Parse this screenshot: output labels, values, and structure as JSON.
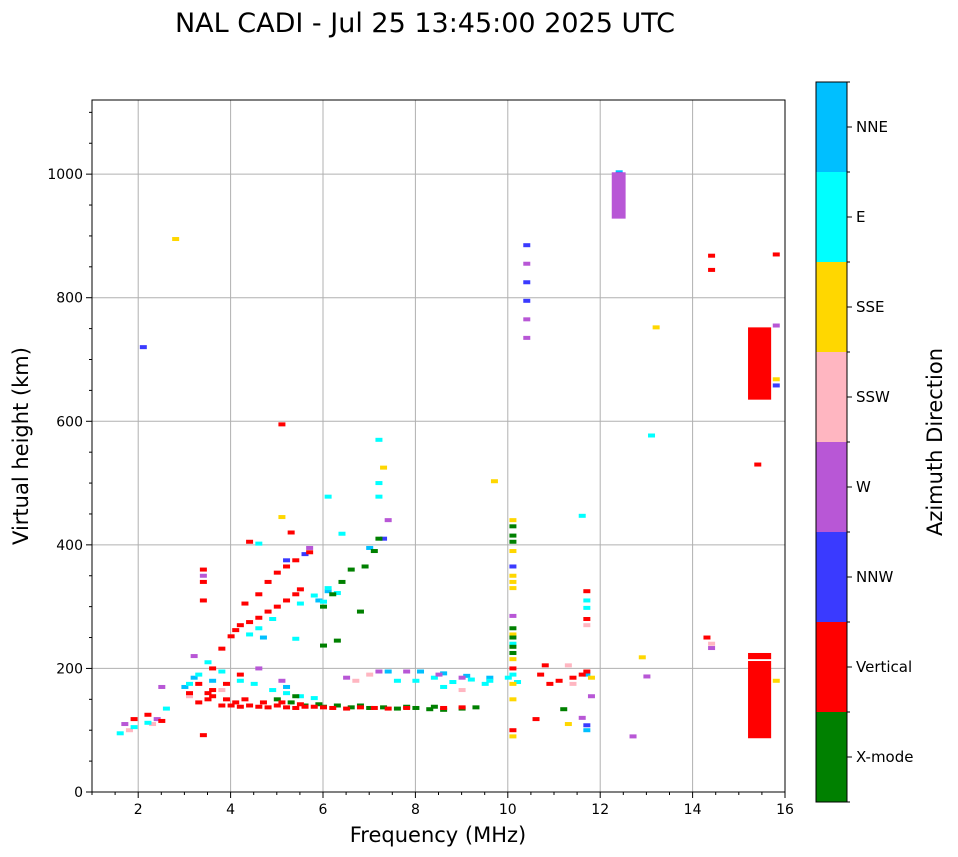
{
  "chart_data": {
    "type": "scatter",
    "title": "NAL CADI - Jul 25 13:45:00 2025 UTC",
    "xlabel": "Frequency (MHz)",
    "ylabel": "Virtual height (km)",
    "xlim": [
      1,
      16
    ],
    "ylim": [
      0,
      1120
    ],
    "xticks": [
      2,
      4,
      6,
      8,
      10,
      12,
      14,
      16
    ],
    "yticks": [
      0,
      200,
      400,
      600,
      800,
      1000
    ],
    "grid": true,
    "colorbar": {
      "label": "Azimuth Direction",
      "categories": [
        "X-mode",
        "Vertical",
        "NNW",
        "W",
        "SSW",
        "SSE",
        "E",
        "NNE"
      ],
      "colors": [
        "#008000",
        "#ff0000",
        "#3a3aff",
        "#b857d6",
        "#ffb6c1",
        "#ffd700",
        "#00ffff",
        "#00bfff"
      ]
    },
    "series": [
      {
        "name": "X-mode",
        "points": [
          [
            5.0,
            150
          ],
          [
            5.3,
            145
          ],
          [
            5.6,
            140
          ],
          [
            6.0,
            138
          ],
          [
            6.3,
            140
          ],
          [
            6.6,
            137
          ],
          [
            7.0,
            136
          ],
          [
            7.3,
            137
          ],
          [
            7.6,
            135
          ],
          [
            8.0,
            136
          ],
          [
            8.3,
            134
          ],
          [
            8.6,
            133
          ],
          [
            9.0,
            135
          ],
          [
            9.3,
            137
          ],
          [
            5.4,
            155
          ],
          [
            5.9,
            142
          ],
          [
            6.8,
            140
          ],
          [
            7.8,
            138
          ],
          [
            8.4,
            138
          ],
          [
            6.4,
            340
          ],
          [
            6.6,
            360
          ],
          [
            6.9,
            365
          ],
          [
            7.1,
            390
          ],
          [
            6.2,
            320
          ],
          [
            6.0,
            300
          ],
          [
            7.2,
            410
          ],
          [
            6.3,
            245
          ],
          [
            6.0,
            237
          ],
          [
            6.8,
            292
          ],
          [
            10.1,
            430
          ],
          [
            10.1,
            415
          ],
          [
            10.1,
            405
          ],
          [
            10.1,
            265
          ],
          [
            10.1,
            250
          ],
          [
            10.1,
            235
          ],
          [
            10.1,
            225
          ],
          [
            11.2,
            134
          ]
        ]
      },
      {
        "name": "Vertical",
        "points": [
          [
            1.9,
            118
          ],
          [
            2.2,
            125
          ],
          [
            2.5,
            115
          ],
          [
            3.1,
            160
          ],
          [
            3.3,
            175
          ],
          [
            3.5,
            150
          ],
          [
            3.6,
            165
          ],
          [
            3.8,
            140
          ],
          [
            4.0,
            140
          ],
          [
            4.2,
            138
          ],
          [
            4.4,
            140
          ],
          [
            4.6,
            138
          ],
          [
            4.8,
            137
          ],
          [
            5.0,
            140
          ],
          [
            5.2,
            137
          ],
          [
            5.4,
            136
          ],
          [
            5.6,
            138
          ],
          [
            5.8,
            138
          ],
          [
            6.0,
            137
          ],
          [
            6.2,
            136
          ],
          [
            6.5,
            135
          ],
          [
            6.8,
            137
          ],
          [
            7.1,
            136
          ],
          [
            7.4,
            135
          ],
          [
            7.8,
            136
          ],
          [
            8.6,
            136
          ],
          [
            9.0,
            137
          ],
          [
            3.3,
            145
          ],
          [
            3.6,
            155
          ],
          [
            3.9,
            150
          ],
          [
            4.1,
            145
          ],
          [
            4.3,
            150
          ],
          [
            4.7,
            145
          ],
          [
            5.1,
            145
          ],
          [
            5.5,
            142
          ],
          [
            3.5,
            160
          ],
          [
            3.9,
            175
          ],
          [
            4.2,
            190
          ],
          [
            3.6,
            200
          ],
          [
            3.8,
            232
          ],
          [
            4.0,
            252
          ],
          [
            4.1,
            262
          ],
          [
            4.2,
            270
          ],
          [
            4.4,
            275
          ],
          [
            4.6,
            282
          ],
          [
            4.8,
            292
          ],
          [
            5.0,
            300
          ],
          [
            5.2,
            310
          ],
          [
            5.4,
            320
          ],
          [
            5.5,
            328
          ],
          [
            4.3,
            305
          ],
          [
            4.6,
            320
          ],
          [
            4.8,
            340
          ],
          [
            5.0,
            355
          ],
          [
            5.2,
            365
          ],
          [
            5.4,
            375
          ],
          [
            5.7,
            388
          ],
          [
            3.4,
            310
          ],
          [
            3.4,
            340
          ],
          [
            3.4,
            360
          ],
          [
            4.4,
            405
          ],
          [
            5.1,
            595
          ],
          [
            5.3,
            420
          ],
          [
            3.4,
            92
          ],
          [
            10.7,
            190
          ],
          [
            10.9,
            175
          ],
          [
            11.1,
            180
          ],
          [
            11.4,
            185
          ],
          [
            11.6,
            190
          ],
          [
            10.8,
            205
          ],
          [
            11.7,
            325
          ],
          [
            11.7,
            280
          ],
          [
            11.7,
            195
          ],
          [
            10.1,
            100
          ],
          [
            10.1,
            200
          ],
          [
            10.6,
            118
          ],
          [
            14.3,
            250
          ],
          [
            14.4,
            868
          ],
          [
            14.4,
            845
          ],
          [
            15.8,
            870
          ],
          [
            15.4,
            530
          ]
        ]
      },
      {
        "name": "NNW",
        "points": [
          [
            2.1,
            720
          ],
          [
            5.2,
            375
          ],
          [
            10.4,
            885
          ],
          [
            10.4,
            825
          ],
          [
            10.4,
            795
          ],
          [
            10.1,
            365
          ],
          [
            11.7,
            108
          ],
          [
            12.4,
            1000
          ],
          [
            12.4,
            975
          ],
          [
            12.4,
            950
          ],
          [
            15.4,
            735
          ],
          [
            15.8,
            658
          ],
          [
            7.3,
            410
          ],
          [
            5.6,
            385
          ]
        ]
      },
      {
        "name": "W",
        "points": [
          [
            1.7,
            110
          ],
          [
            2.4,
            118
          ],
          [
            2.5,
            170
          ],
          [
            3.4,
            350
          ],
          [
            3.2,
            220
          ],
          [
            4.6,
            200
          ],
          [
            5.1,
            180
          ],
          [
            6.5,
            185
          ],
          [
            7.2,
            195
          ],
          [
            7.8,
            195
          ],
          [
            8.5,
            190
          ],
          [
            9.0,
            185
          ],
          [
            10.4,
            855
          ],
          [
            10.4,
            765
          ],
          [
            10.4,
            735
          ],
          [
            10.1,
            285
          ],
          [
            11.6,
            120
          ],
          [
            11.8,
            155
          ],
          [
            12.4,
            990
          ],
          [
            12.4,
            965
          ],
          [
            12.4,
            940
          ],
          [
            12.7,
            90
          ],
          [
            13.0,
            187
          ],
          [
            14.4,
            233
          ],
          [
            15.8,
            755
          ],
          [
            7.4,
            440
          ],
          [
            5.7,
            395
          ]
        ]
      },
      {
        "name": "SSW",
        "points": [
          [
            1.8,
            100
          ],
          [
            2.3,
            110
          ],
          [
            3.1,
            155
          ],
          [
            3.8,
            165
          ],
          [
            6.7,
            180
          ],
          [
            7.0,
            190
          ],
          [
            9.0,
            165
          ],
          [
            11.4,
            175
          ],
          [
            11.3,
            205
          ],
          [
            11.7,
            270
          ],
          [
            14.4,
            240
          ]
        ]
      },
      {
        "name": "SSE",
        "points": [
          [
            2.8,
            895
          ],
          [
            7.3,
            525
          ],
          [
            9.7,
            503
          ],
          [
            10.1,
            440
          ],
          [
            10.1,
            390
          ],
          [
            10.1,
            350
          ],
          [
            10.1,
            340
          ],
          [
            10.1,
            330
          ],
          [
            10.1,
            255
          ],
          [
            10.1,
            215
          ],
          [
            10.1,
            175
          ],
          [
            10.1,
            150
          ],
          [
            10.1,
            90
          ],
          [
            11.3,
            110
          ],
          [
            13.2,
            752
          ],
          [
            12.9,
            218
          ],
          [
            15.8,
            668
          ],
          [
            15.8,
            180
          ],
          [
            5.1,
            445
          ],
          [
            11.8,
            185
          ]
        ]
      },
      {
        "name": "E",
        "points": [
          [
            1.6,
            95
          ],
          [
            1.9,
            105
          ],
          [
            2.2,
            112
          ],
          [
            2.6,
            135
          ],
          [
            3.1,
            175
          ],
          [
            3.3,
            190
          ],
          [
            3.5,
            210
          ],
          [
            3.8,
            195
          ],
          [
            4.2,
            180
          ],
          [
            4.5,
            175
          ],
          [
            4.9,
            165
          ],
          [
            5.2,
            160
          ],
          [
            5.5,
            155
          ],
          [
            5.8,
            152
          ],
          [
            4.4,
            255
          ],
          [
            4.6,
            265
          ],
          [
            4.9,
            280
          ],
          [
            5.5,
            305
          ],
          [
            5.8,
            318
          ],
          [
            6.1,
            330
          ],
          [
            6.3,
            322
          ],
          [
            6.0,
            308
          ],
          [
            6.1,
            478
          ],
          [
            6.4,
            418
          ],
          [
            7.2,
            478
          ],
          [
            7.2,
            500
          ],
          [
            7.2,
            570
          ],
          [
            4.6,
            402
          ],
          [
            5.4,
            248
          ],
          [
            7.6,
            180
          ],
          [
            8.0,
            180
          ],
          [
            8.4,
            185
          ],
          [
            8.8,
            178
          ],
          [
            9.2,
            182
          ],
          [
            9.6,
            180
          ],
          [
            10.0,
            185
          ],
          [
            10.2,
            178
          ],
          [
            8.6,
            170
          ],
          [
            9.5,
            175
          ],
          [
            10.1,
            240
          ],
          [
            10.1,
            190
          ],
          [
            11.6,
            447
          ],
          [
            11.7,
            310
          ],
          [
            11.7,
            298
          ],
          [
            13.1,
            577
          ]
        ]
      },
      {
        "name": "NNE",
        "points": [
          [
            3.0,
            170
          ],
          [
            3.2,
            185
          ],
          [
            3.6,
            180
          ],
          [
            4.7,
            250
          ],
          [
            5.2,
            170
          ],
          [
            5.9,
            310
          ],
          [
            6.1,
            325
          ],
          [
            7.4,
            195
          ],
          [
            8.1,
            195
          ],
          [
            8.6,
            192
          ],
          [
            9.1,
            188
          ],
          [
            9.6,
            185
          ],
          [
            7.0,
            395
          ],
          [
            11.7,
            190
          ],
          [
            11.7,
            100
          ],
          [
            12.4,
            1003
          ]
        ]
      }
    ],
    "bars": [
      {
        "category": "Vertical",
        "x": [
          15.2,
          15.7
        ],
        "y": [
          635,
          752
        ]
      },
      {
        "category": "Vertical",
        "x": [
          15.2,
          15.7
        ],
        "y": [
          87,
          212
        ]
      },
      {
        "category": "Vertical",
        "x": [
          15.2,
          15.7
        ],
        "y": [
          215,
          225
        ]
      },
      {
        "category": "W",
        "x": [
          12.25,
          12.55
        ],
        "y": [
          928,
          1003
        ]
      }
    ]
  }
}
